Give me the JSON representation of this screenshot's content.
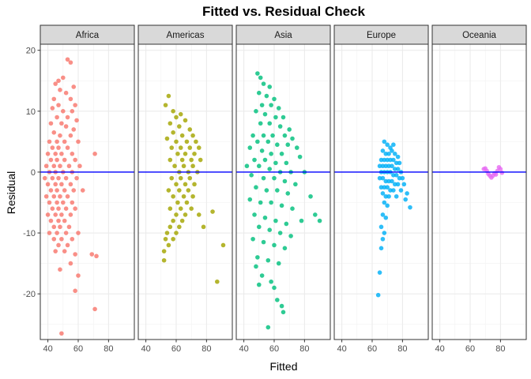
{
  "chart_data": {
    "type": "scatter",
    "title": "Fitted vs. Residual Check",
    "xlabel": "Fitted",
    "ylabel": "Residual",
    "xlim": [
      35,
      97
    ],
    "ylim": [
      -27.5,
      21
    ],
    "x_ticks": [
      40,
      60,
      80
    ],
    "y_ticks": [
      -20,
      -10,
      0,
      10,
      20
    ],
    "grid": true,
    "legend": "none",
    "reference_line": {
      "y": 0,
      "color": "#0000FF"
    },
    "facets": [
      {
        "label": "Africa",
        "color": "#F8766D",
        "points": [
          [
            53,
            18.5
          ],
          [
            55,
            18
          ],
          [
            50,
            15.5
          ],
          [
            47,
            15
          ],
          [
            45,
            14.5
          ],
          [
            57,
            14
          ],
          [
            48,
            13.5
          ],
          [
            52,
            13
          ],
          [
            44,
            12
          ],
          [
            55,
            12
          ],
          [
            47,
            11
          ],
          [
            58,
            11
          ],
          [
            43,
            10.5
          ],
          [
            50,
            10
          ],
          [
            56,
            10
          ],
          [
            46,
            9
          ],
          [
            53,
            9
          ],
          [
            59,
            8.5
          ],
          [
            42,
            8
          ],
          [
            49,
            8
          ],
          [
            52,
            7.5
          ],
          [
            57,
            7
          ],
          [
            44,
            6.5
          ],
          [
            48,
            6
          ],
          [
            55,
            6
          ],
          [
            41,
            5
          ],
          [
            46,
            5
          ],
          [
            51,
            5
          ],
          [
            60,
            5
          ],
          [
            43,
            4
          ],
          [
            47,
            4
          ],
          [
            53,
            4
          ],
          [
            40,
            3
          ],
          [
            45,
            3
          ],
          [
            49,
            3
          ],
          [
            56,
            3
          ],
          [
            71,
            3
          ],
          [
            42,
            2
          ],
          [
            46,
            2
          ],
          [
            51,
            2
          ],
          [
            58,
            2
          ],
          [
            39,
            1
          ],
          [
            44,
            1
          ],
          [
            48,
            1
          ],
          [
            54,
            1
          ],
          [
            61,
            1
          ],
          [
            41,
            0
          ],
          [
            45,
            0
          ],
          [
            50,
            0
          ],
          [
            56,
            0
          ],
          [
            38,
            -1
          ],
          [
            43,
            -1
          ],
          [
            47,
            -1
          ],
          [
            52,
            -1
          ],
          [
            59,
            -1
          ],
          [
            40,
            -2
          ],
          [
            45,
            -2
          ],
          [
            49,
            -2
          ],
          [
            55,
            -2
          ],
          [
            42,
            -3
          ],
          [
            46,
            -3
          ],
          [
            51,
            -3
          ],
          [
            57,
            -3
          ],
          [
            63,
            -3
          ],
          [
            39,
            -4
          ],
          [
            44,
            -4
          ],
          [
            48,
            -4
          ],
          [
            53,
            -4
          ],
          [
            41,
            -5
          ],
          [
            46,
            -5
          ],
          [
            50,
            -5
          ],
          [
            56,
            -5
          ],
          [
            43,
            -6
          ],
          [
            47,
            -6
          ],
          [
            52,
            -6
          ],
          [
            58,
            -6
          ],
          [
            40,
            -7
          ],
          [
            45,
            -7
          ],
          [
            49,
            -7
          ],
          [
            55,
            -7
          ],
          [
            42,
            -8
          ],
          [
            47,
            -8
          ],
          [
            51,
            -8
          ],
          [
            44,
            -9
          ],
          [
            48,
            -9
          ],
          [
            54,
            -9
          ],
          [
            41,
            -10
          ],
          [
            46,
            -10
          ],
          [
            52,
            -10
          ],
          [
            60,
            -10
          ],
          [
            44,
            -11
          ],
          [
            49,
            -11
          ],
          [
            56,
            -11
          ],
          [
            47,
            -12
          ],
          [
            53,
            -12
          ],
          [
            45,
            -13
          ],
          [
            51,
            -13
          ],
          [
            58,
            -13.5
          ],
          [
            69,
            -13.5
          ],
          [
            72,
            -13.8
          ],
          [
            55,
            -15
          ],
          [
            48,
            -16
          ],
          [
            60,
            -17
          ],
          [
            58,
            -19.5
          ],
          [
            71,
            -22.5
          ],
          [
            49,
            -26.5
          ]
        ]
      },
      {
        "label": "Americas",
        "color": "#A3A500",
        "points": [
          [
            55,
            12.5
          ],
          [
            53,
            11
          ],
          [
            58,
            10
          ],
          [
            63,
            9.5
          ],
          [
            60,
            9
          ],
          [
            66,
            8.5
          ],
          [
            56,
            8
          ],
          [
            62,
            7.5
          ],
          [
            69,
            7
          ],
          [
            58,
            6.5
          ],
          [
            64,
            6
          ],
          [
            71,
            6
          ],
          [
            54,
            5.5
          ],
          [
            60,
            5
          ],
          [
            67,
            5
          ],
          [
            73,
            5
          ],
          [
            57,
            4
          ],
          [
            63,
            4
          ],
          [
            69,
            4
          ],
          [
            75,
            4
          ],
          [
            61,
            3
          ],
          [
            66,
            3
          ],
          [
            72,
            3
          ],
          [
            56,
            2
          ],
          [
            64,
            2
          ],
          [
            70,
            2
          ],
          [
            76,
            2
          ],
          [
            59,
            1
          ],
          [
            65,
            1
          ],
          [
            71,
            1
          ],
          [
            62,
            0
          ],
          [
            68,
            0
          ],
          [
            74,
            0
          ],
          [
            57,
            -1
          ],
          [
            63,
            -1
          ],
          [
            69,
            -1
          ],
          [
            60,
            -2
          ],
          [
            66,
            -2
          ],
          [
            72,
            -2
          ],
          [
            55,
            -3
          ],
          [
            62,
            -3
          ],
          [
            68,
            -3
          ],
          [
            58,
            -4
          ],
          [
            65,
            -4
          ],
          [
            71,
            -4
          ],
          [
            61,
            -5
          ],
          [
            67,
            -5
          ],
          [
            56,
            -6
          ],
          [
            63,
            -6
          ],
          [
            70,
            -6
          ],
          [
            60,
            -7
          ],
          [
            66,
            -7
          ],
          [
            75,
            -7
          ],
          [
            58,
            -8
          ],
          [
            64,
            -8
          ],
          [
            84,
            -6.5
          ],
          [
            56,
            -9
          ],
          [
            62,
            -9
          ],
          [
            78,
            -9
          ],
          [
            54,
            -10
          ],
          [
            60,
            -10
          ],
          [
            53,
            -11
          ],
          [
            58,
            -11
          ],
          [
            55,
            -12
          ],
          [
            52,
            -13
          ],
          [
            91,
            -12
          ],
          [
            52,
            -14.5
          ],
          [
            87,
            -18
          ]
        ]
      },
      {
        "label": "Asia",
        "color": "#00BF7D",
        "points": [
          [
            49,
            16.2
          ],
          [
            51,
            15.5
          ],
          [
            53,
            14.5
          ],
          [
            57,
            14
          ],
          [
            50,
            13
          ],
          [
            55,
            12.5
          ],
          [
            60,
            12
          ],
          [
            52,
            11
          ],
          [
            58,
            11
          ],
          [
            63,
            10.5
          ],
          [
            48,
            10
          ],
          [
            54,
            9.5
          ],
          [
            61,
            9
          ],
          [
            66,
            9
          ],
          [
            51,
            8
          ],
          [
            57,
            8
          ],
          [
            64,
            7.5
          ],
          [
            70,
            7
          ],
          [
            46,
            6
          ],
          [
            53,
            6
          ],
          [
            59,
            6
          ],
          [
            67,
            6
          ],
          [
            72,
            5.5
          ],
          [
            49,
            5
          ],
          [
            56,
            5
          ],
          [
            62,
            4.5
          ],
          [
            69,
            4.5
          ],
          [
            75,
            4
          ],
          [
            44,
            4
          ],
          [
            52,
            3.5
          ],
          [
            58,
            3
          ],
          [
            65,
            3
          ],
          [
            77,
            2.5
          ],
          [
            47,
            2
          ],
          [
            54,
            2
          ],
          [
            61,
            1.5
          ],
          [
            68,
            1.5
          ],
          [
            42,
            1
          ],
          [
            50,
            1
          ],
          [
            57,
            0.5
          ],
          [
            64,
            0
          ],
          [
            71,
            0
          ],
          [
            80,
            0
          ],
          [
            45,
            -0.5
          ],
          [
            53,
            -1
          ],
          [
            60,
            -1
          ],
          [
            67,
            -1.5
          ],
          [
            74,
            -2
          ],
          [
            48,
            -2.5
          ],
          [
            55,
            -3
          ],
          [
            62,
            -3
          ],
          [
            69,
            -3.5
          ],
          [
            84,
            -4
          ],
          [
            44,
            -4.5
          ],
          [
            51,
            -5
          ],
          [
            58,
            -5
          ],
          [
            65,
            -5.5
          ],
          [
            72,
            -6
          ],
          [
            87,
            -7
          ],
          [
            47,
            -7
          ],
          [
            54,
            -7.5
          ],
          [
            61,
            -8
          ],
          [
            68,
            -8.5
          ],
          [
            78,
            -8
          ],
          [
            90,
            -8
          ],
          [
            50,
            -9
          ],
          [
            57,
            -9.5
          ],
          [
            64,
            -10
          ],
          [
            71,
            -10.5
          ],
          [
            46,
            -11
          ],
          [
            53,
            -11.5
          ],
          [
            60,
            -12
          ],
          [
            67,
            -12.5
          ],
          [
            49,
            -14
          ],
          [
            56,
            -14.5
          ],
          [
            63,
            -15
          ],
          [
            48,
            -15.5
          ],
          [
            52,
            -17
          ],
          [
            58,
            -18
          ],
          [
            50,
            -18.5
          ],
          [
            60,
            -19
          ],
          [
            62,
            -21
          ],
          [
            65,
            -22
          ],
          [
            66,
            -23
          ],
          [
            56,
            -25.5
          ]
        ]
      },
      {
        "label": "Europe",
        "color": "#00B0F6",
        "points": [
          [
            68,
            5
          ],
          [
            70,
            4.5
          ],
          [
            72,
            4
          ],
          [
            74,
            4.5
          ],
          [
            67,
            3.5
          ],
          [
            69,
            3
          ],
          [
            71,
            3
          ],
          [
            73,
            3.5
          ],
          [
            75,
            3
          ],
          [
            77,
            2.5
          ],
          [
            66,
            2
          ],
          [
            68,
            2
          ],
          [
            70,
            2
          ],
          [
            72,
            2
          ],
          [
            74,
            2
          ],
          [
            76,
            1.5
          ],
          [
            78,
            1.5
          ],
          [
            65,
            1
          ],
          [
            67,
            1
          ],
          [
            69,
            1
          ],
          [
            71,
            1
          ],
          [
            73,
            1
          ],
          [
            75,
            0.5
          ],
          [
            77,
            0.5
          ],
          [
            79,
            0
          ],
          [
            66,
            0
          ],
          [
            68,
            0
          ],
          [
            70,
            0
          ],
          [
            72,
            0
          ],
          [
            74,
            -0.5
          ],
          [
            76,
            -0.5
          ],
          [
            78,
            -1
          ],
          [
            80,
            -1
          ],
          [
            65,
            -1
          ],
          [
            67,
            -1
          ],
          [
            69,
            -1.5
          ],
          [
            71,
            -1.5
          ],
          [
            73,
            -1.5
          ],
          [
            75,
            -2
          ],
          [
            77,
            -2
          ],
          [
            81,
            -2
          ],
          [
            66,
            -2.5
          ],
          [
            68,
            -2.5
          ],
          [
            70,
            -2.5
          ],
          [
            72,
            -3
          ],
          [
            74,
            -3
          ],
          [
            79,
            -3
          ],
          [
            83,
            -3.5
          ],
          [
            67,
            -3.5
          ],
          [
            69,
            -4
          ],
          [
            71,
            -4
          ],
          [
            76,
            -4
          ],
          [
            82,
            -4.5
          ],
          [
            85,
            -5.8
          ],
          [
            68,
            -5
          ],
          [
            70,
            -5.5
          ],
          [
            67,
            -7
          ],
          [
            69,
            -7.5
          ],
          [
            66,
            -9
          ],
          [
            68,
            -10
          ],
          [
            67,
            -11
          ],
          [
            66,
            -12.5
          ],
          [
            65,
            -16.5
          ],
          [
            64,
            -20.2
          ]
        ]
      },
      {
        "label": "Oceania",
        "color": "#E76BF3",
        "points": [
          [
            69,
            0.5
          ],
          [
            70,
            0.6
          ],
          [
            71,
            0.2
          ],
          [
            72,
            -0.3
          ],
          [
            73,
            -0.6
          ],
          [
            74,
            -0.9
          ],
          [
            75,
            -0.6
          ],
          [
            77,
            -0.4
          ],
          [
            78,
            0.2
          ],
          [
            79,
            0.8
          ],
          [
            80,
            0.5
          ],
          [
            81,
            -0.1
          ],
          [
            76,
            -0.2
          ]
        ]
      }
    ]
  }
}
